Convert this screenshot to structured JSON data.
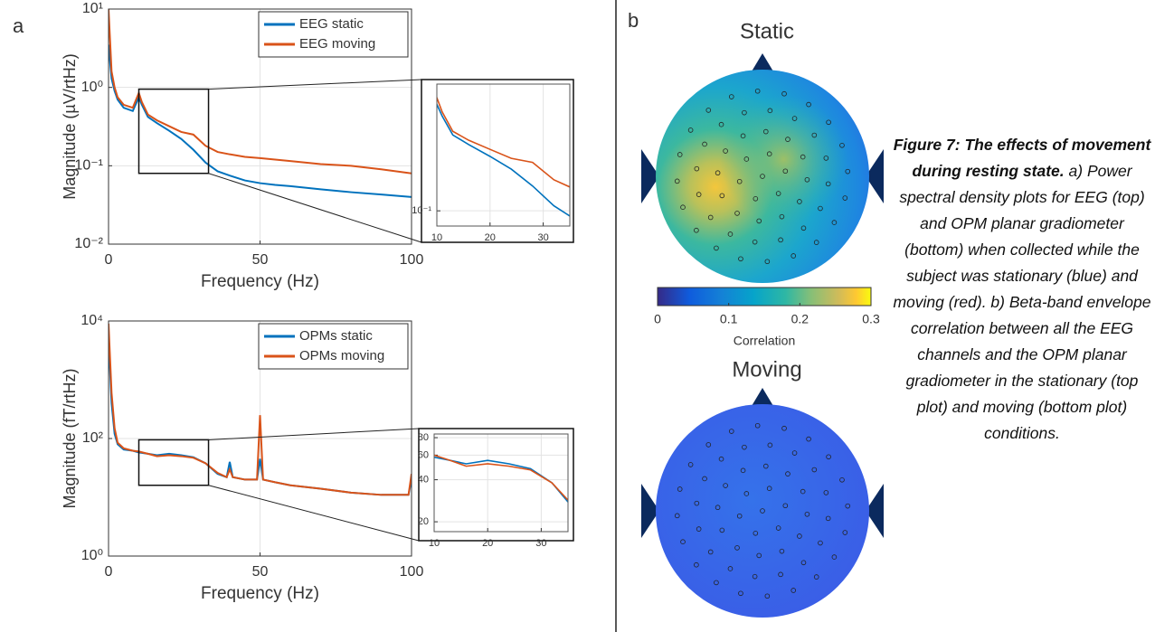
{
  "panel_labels": [
    "a",
    "b"
  ],
  "chart_data": [
    {
      "type": "line",
      "xlabel": "Frequency (Hz)",
      "ylabel": "Magnitude (µV/rtHz)",
      "xlim": [
        0,
        100
      ],
      "xticks": [
        0,
        50,
        100
      ],
      "ylim": [
        0.01,
        10
      ],
      "yticks": [
        {
          "value": 0.01,
          "label": "10⁻²"
        },
        {
          "value": 0.1,
          "label": "10⁻¹"
        },
        {
          "value": 1,
          "label": "10⁰"
        },
        {
          "value": 10,
          "label": "10¹"
        }
      ],
      "log_y": true,
      "grid": true,
      "legend": "upper right",
      "x": [
        0,
        1,
        2,
        3,
        5,
        8,
        10,
        11,
        13,
        16,
        20,
        24,
        28,
        32,
        36,
        40,
        45,
        50,
        55,
        60,
        70,
        80,
        90,
        100
      ],
      "series": [
        {
          "name": "EEG static",
          "color": "#0072bd",
          "values": [
            3.5,
            1.3,
            0.9,
            0.7,
            0.55,
            0.5,
            0.75,
            0.6,
            0.42,
            0.35,
            0.28,
            0.22,
            0.16,
            0.11,
            0.085,
            0.075,
            0.065,
            0.06,
            0.057,
            0.055,
            0.05,
            0.046,
            0.043,
            0.04
          ]
        },
        {
          "name": "EEG moving",
          "color": "#d95319",
          "values": [
            10,
            1.6,
            1.0,
            0.75,
            0.6,
            0.55,
            0.85,
            0.65,
            0.45,
            0.38,
            0.32,
            0.27,
            0.25,
            0.18,
            0.15,
            0.14,
            0.13,
            0.125,
            0.12,
            0.115,
            0.105,
            0.1,
            0.09,
            0.08
          ]
        }
      ],
      "zoom": {
        "xlim": [
          10,
          33
        ],
        "ylim": [
          0.08,
          0.95
        ]
      },
      "inset": {
        "xlim": [
          10,
          35
        ],
        "ylim": [
          0.075,
          1.1
        ],
        "xticks": [
          10,
          20,
          30
        ],
        "yticks": [
          {
            "value": 0.1,
            "label": "10⁻¹"
          }
        ],
        "log_y": true,
        "grid": true
      }
    },
    {
      "type": "line",
      "xlabel": "Frequency (Hz)",
      "ylabel": "Magnitude (fT/rtHz)",
      "xlim": [
        0,
        100
      ],
      "xticks": [
        0,
        50,
        100
      ],
      "ylim": [
        1,
        10000
      ],
      "yticks": [
        {
          "value": 1,
          "label": "10⁰"
        },
        {
          "value": 100,
          "label": "10²"
        },
        {
          "value": 10000,
          "label": "10⁴"
        }
      ],
      "log_y": true,
      "grid": true,
      "legend": "upper right",
      "x": [
        0,
        1,
        2,
        3,
        5,
        8,
        10,
        13,
        16,
        20,
        24,
        28,
        32,
        36,
        39,
        40,
        41,
        45,
        49,
        50,
        51,
        55,
        60,
        70,
        80,
        90,
        99,
        100
      ],
      "series": [
        {
          "name": "OPMs static",
          "color": "#0072bd",
          "values": [
            5000,
            400,
            120,
            80,
            65,
            62,
            58,
            55,
            52,
            55,
            52,
            48,
            38,
            25,
            22,
            40,
            22,
            20,
            20,
            45,
            20,
            18,
            16,
            14,
            12,
            11,
            11,
            20
          ]
        },
        {
          "name": "OPMs moving",
          "color": "#d95319",
          "values": [
            9000,
            600,
            150,
            85,
            68,
            62,
            60,
            55,
            50,
            52,
            50,
            47,
            38,
            26,
            22,
            30,
            22,
            20,
            20,
            250,
            20,
            18,
            16,
            14,
            12,
            11,
            11,
            25
          ]
        }
      ],
      "zoom": {
        "xlim": [
          10,
          33
        ],
        "ylim": [
          16,
          95
        ]
      },
      "inset": {
        "xlim": [
          10,
          35
        ],
        "ylim": [
          17,
          85
        ],
        "xticks": [
          10,
          20,
          30
        ],
        "yticks": [
          20,
          40,
          60,
          80
        ],
        "log_y": true,
        "grid": true
      }
    },
    {
      "type": "topoplot",
      "title": "Static",
      "clim": [
        0,
        0.3
      ],
      "cticks": [
        0,
        0.1,
        0.2,
        0.3
      ],
      "clabel": "Correlation"
    },
    {
      "type": "topoplot",
      "title": "Moving"
    }
  ],
  "caption": {
    "title": "Figure 7: The effects of movement during resting state.",
    "text": "a) Power spectral density plots for EEG (top) and OPM planar gradiometer (bottom) when collected while the subject was stationary (blue) and moving (red). b) Beta-band envelope correlation between all the EEG channels and the OPM planar gradiometer in the stationary (top plot) and moving (bottom plot) conditions."
  }
}
